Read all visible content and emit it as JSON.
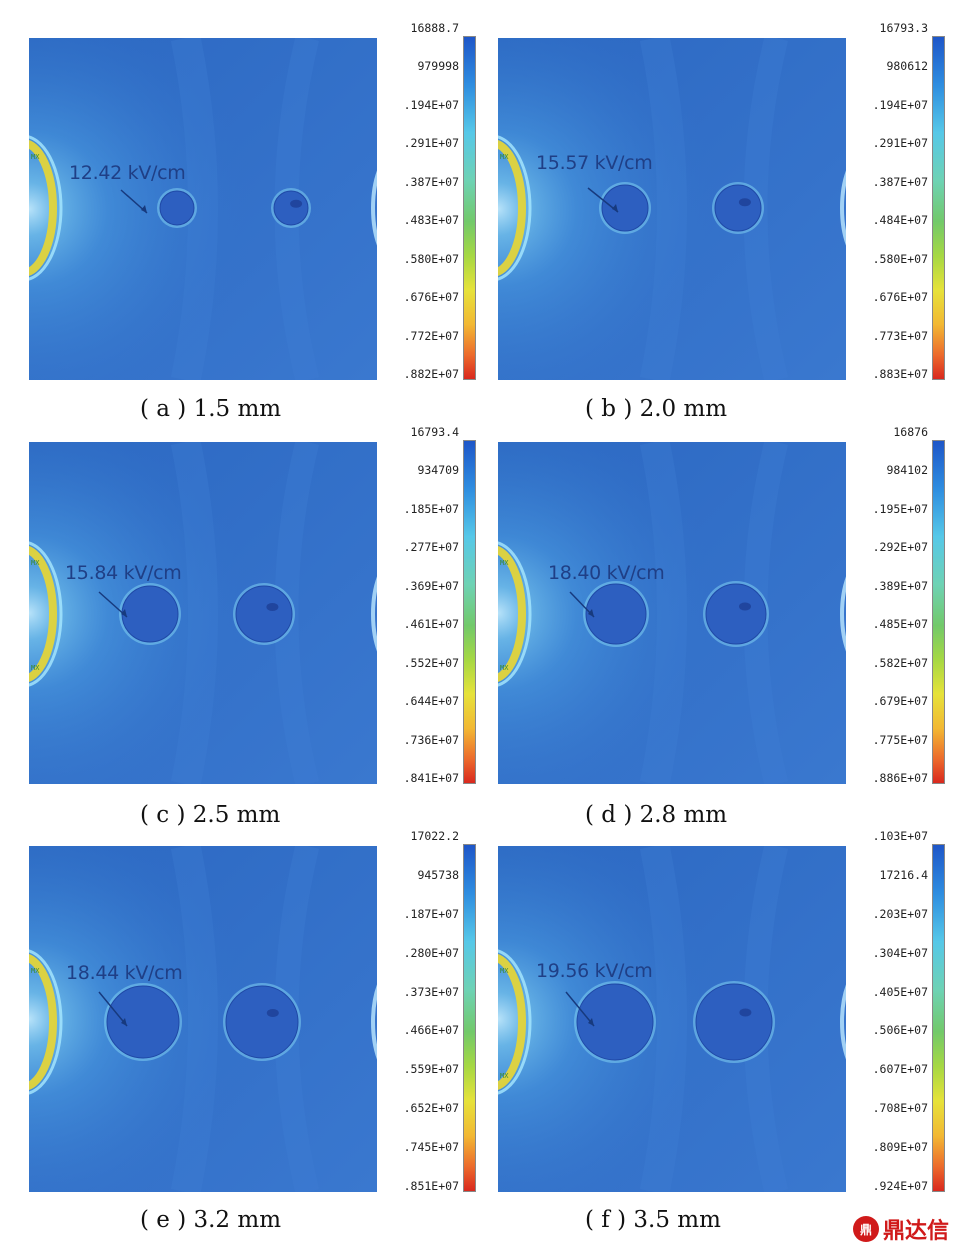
{
  "panels": [
    {
      "label": "(a)",
      "caption": "( a ) 1.5 mm",
      "callout": "12.42 kV/cm",
      "scale": [
        "16888.7",
        "979998",
        ".194E+07",
        ".291E+07",
        ".387E+07",
        ".483E+07",
        ".580E+07",
        ".676E+07",
        ".772E+07",
        ".882E+07"
      ],
      "markers": [
        "MX"
      ]
    },
    {
      "label": "(b)",
      "caption": "( b ) 2.0 mm",
      "callout": "15.57 kV/cm",
      "scale": [
        "16793.3",
        "980612",
        ".194E+07",
        ".291E+07",
        ".387E+07",
        ".484E+07",
        ".580E+07",
        ".676E+07",
        ".773E+07",
        ".883E+07"
      ],
      "markers": [
        "MX"
      ]
    },
    {
      "label": "(c)",
      "caption": "( c ) 2.5 mm",
      "callout": "15.84 kV/cm",
      "scale": [
        "16793.4",
        "934709",
        ".185E+07",
        ".277E+07",
        ".369E+07",
        ".461E+07",
        ".552E+07",
        ".644E+07",
        ".736E+07",
        ".841E+07"
      ],
      "markers": [
        "MX",
        "MX"
      ]
    },
    {
      "label": "(d)",
      "caption": "( d ) 2.8 mm",
      "callout": "18.40 kV/cm",
      "scale": [
        "16876",
        "984102",
        ".195E+07",
        ".292E+07",
        ".389E+07",
        ".485E+07",
        ".582E+07",
        ".679E+07",
        ".775E+07",
        ".886E+07"
      ],
      "markers": [
        "MX",
        "MX"
      ]
    },
    {
      "label": "(e)",
      "caption": "( e ) 3.2 mm",
      "callout": "18.44 kV/cm",
      "scale": [
        "17022.2",
        "945738",
        ".187E+07",
        ".280E+07",
        ".373E+07",
        ".466E+07",
        ".559E+07",
        ".652E+07",
        ".745E+07",
        ".851E+07"
      ],
      "markers": [
        "MX"
      ]
    },
    {
      "label": "(f)",
      "caption": "( f ) 3.5 mm",
      "callout": "19.56 kV/cm",
      "scale": [
        ".103E+07",
        "17216.4",
        ".203E+07",
        ".304E+07",
        ".405E+07",
        ".506E+07",
        ".607E+07",
        ".708E+07",
        ".809E+07",
        ".924E+07"
      ],
      "markers": [
        "MX",
        "MX"
      ]
    }
  ],
  "logo": {
    "mark": "鼎",
    "text": "鼎达信"
  },
  "colors": {
    "field_bg": "#2f6fc9",
    "hot": "#e6d53a",
    "glow": "#9fe3ff"
  }
}
